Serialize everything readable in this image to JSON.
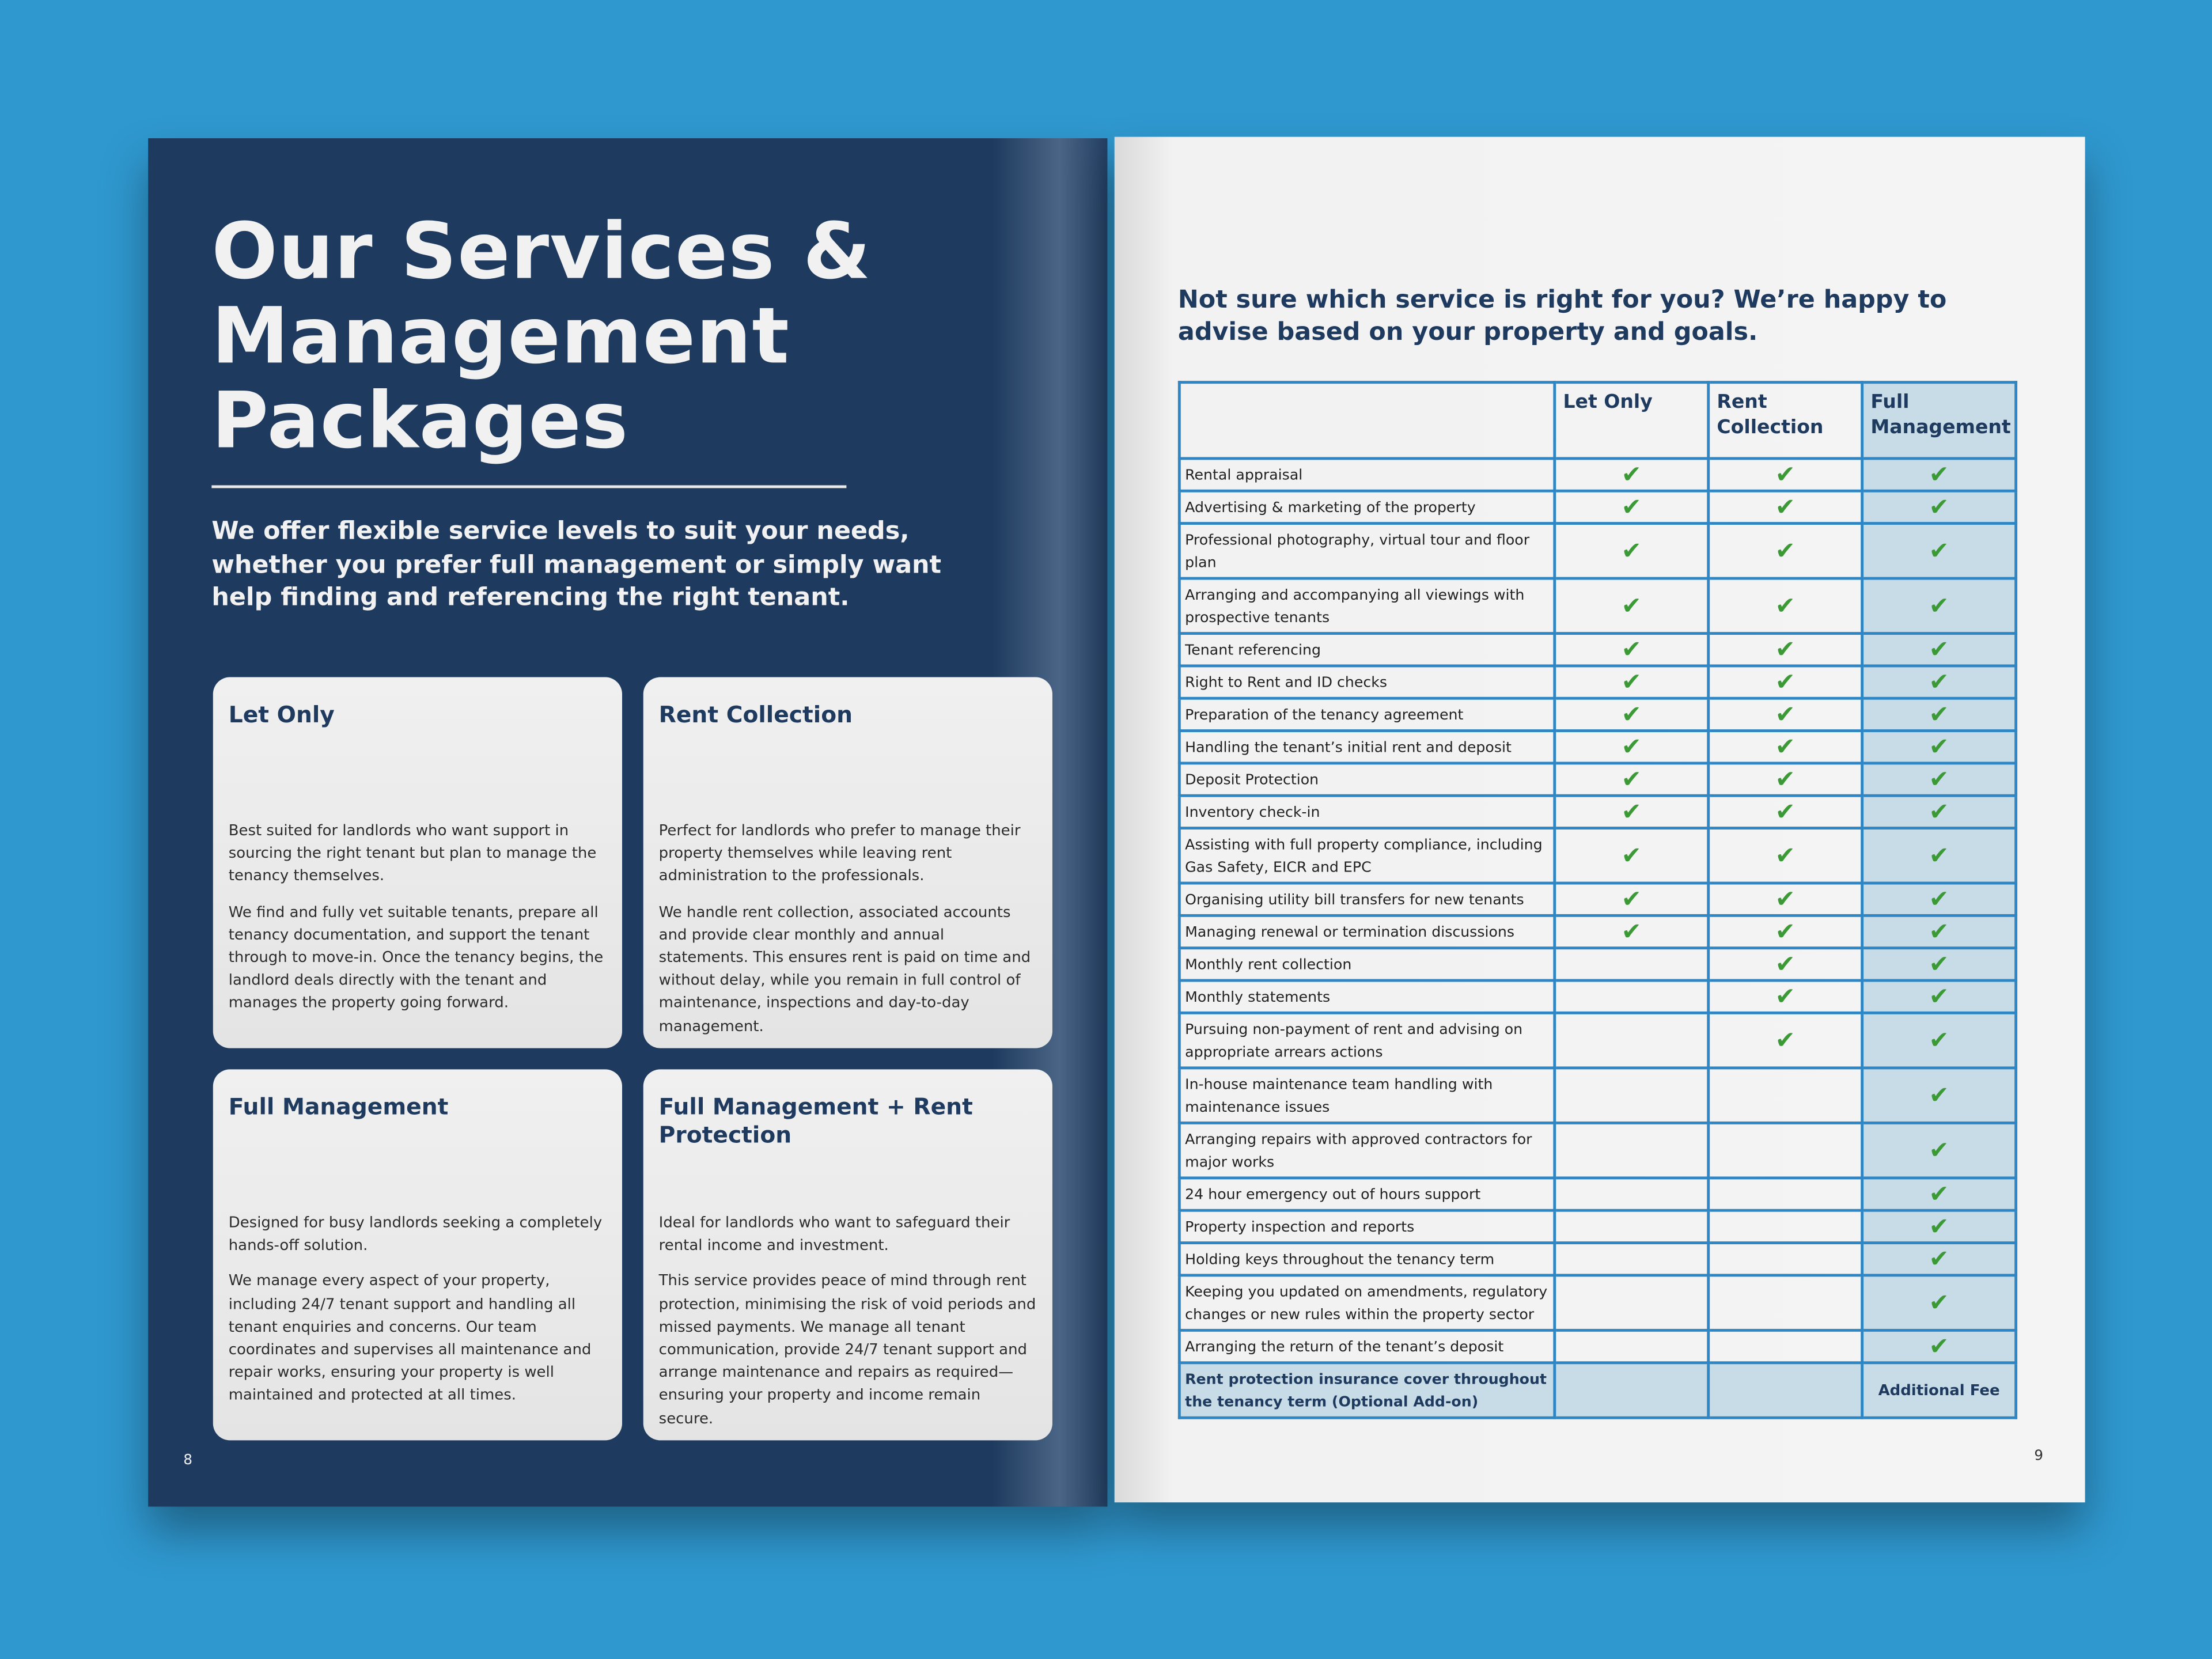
{
  "left_page": {
    "title": "Our Services & Management Packages",
    "intro": "We offer flexible service levels to suit your needs, whether you prefer full management or simply want help finding and referencing the right tenant.",
    "cards": [
      {
        "title": "Let Only",
        "paragraphs": [
          "Best suited for landlords who want support in sourcing the right tenant but plan to manage the tenancy themselves.",
          "We find and fully vet suitable tenants, prepare all tenancy documentation, and support the tenant through to move-in. Once the tenancy begins, the landlord deals directly with the tenant and manages the property going forward."
        ]
      },
      {
        "title": "Rent Collection",
        "paragraphs": [
          "Perfect for landlords who prefer to manage their property themselves while leaving rent administration to the professionals.",
          "We handle rent collection, associated accounts and provide clear monthly and annual statements. This ensures rent is paid on time and without delay, while you remain in full control of maintenance, inspections and day-to-day management."
        ]
      },
      {
        "title": "Full Management",
        "paragraphs": [
          "Designed for busy landlords seeking a completely hands-off solution.",
          "We manage every aspect of your property, including 24/7 tenant support and handling all tenant enquiries and concerns. Our team coordinates and supervises all maintenance and repair works, ensuring your property is well maintained and protected at all times."
        ]
      },
      {
        "title": "Full Management + Rent Protection",
        "paragraphs": [
          "Ideal for landlords who want to safeguard their rental income and investment.",
          "This service provides peace of mind through rent protection, minimising the risk of void periods and missed payments. We manage all tenant communication, provide 24/7 tenant support and arrange maintenance and repairs as required—ensuring your property and income remain secure."
        ]
      }
    ],
    "page_number": "8"
  },
  "right_page": {
    "heading": "Not sure which service is right for you? We’re happy to advise based on your property and goals.",
    "table": {
      "headers": [
        "Let Only",
        "Rent Collection",
        "Full Management"
      ],
      "rows": [
        [
          "Rental appraisal",
          "✔",
          "✔",
          "✔"
        ],
        [
          "Advertising & marketing of the property",
          "✔",
          "✔",
          "✔"
        ],
        [
          "Professional photography, virtual tour and floor plan",
          "✔",
          "✔",
          "✔"
        ],
        [
          "Arranging and accompanying all viewings with prospective tenants",
          "✔",
          "✔",
          "✔"
        ],
        [
          "Tenant referencing",
          "✔",
          "✔",
          "✔"
        ],
        [
          "Right to Rent and ID checks",
          "✔",
          "✔",
          "✔"
        ],
        [
          "Preparation of the tenancy agreement",
          "✔",
          "✔",
          "✔"
        ],
        [
          "Handling the tenant’s initial rent and deposit",
          "✔",
          "✔",
          "✔"
        ],
        [
          "Deposit Protection",
          "✔",
          "✔",
          "✔"
        ],
        [
          "Inventory check-in",
          "✔",
          "✔",
          "✔"
        ],
        [
          "Assisting with full property compliance, including Gas Safety, EICR and EPC",
          "✔",
          "✔",
          "✔"
        ],
        [
          "Organising utility bill transfers for new tenants",
          "✔",
          "✔",
          "✔"
        ],
        [
          "Managing renewal or termination discussions",
          "✔",
          "✔",
          "✔"
        ],
        [
          "Monthly rent collection",
          null,
          "✔",
          "✔"
        ],
        [
          "Monthly statements",
          null,
          "✔",
          "✔"
        ],
        [
          "Pursuing non-payment of rent and advising on appropriate arrears actions",
          null,
          "✔",
          "✔"
        ],
        [
          "In-house maintenance team handling with maintenance issues",
          null,
          null,
          "✔"
        ],
        [
          "Arranging repairs with approved contractors for major works",
          null,
          null,
          "✔"
        ],
        [
          "24 hour emergency out of hours support",
          null,
          null,
          "✔"
        ],
        [
          "Property inspection and reports",
          null,
          null,
          "✔"
        ],
        [
          "Holding keys throughout the tenancy term",
          null,
          null,
          "✔"
        ],
        [
          "Keeping you updated on amendments, regulatory changes or new rules within the property sector",
          null,
          null,
          "✔"
        ],
        [
          "Arranging the return of the tenant’s deposit",
          null,
          null,
          "✔"
        ],
        [
          "Rent protection insurance cover throughout the tenancy term (Optional Add-on)",
          null,
          null,
          "Additional Fee"
        ]
      ]
    },
    "page_number": "9"
  }
}
